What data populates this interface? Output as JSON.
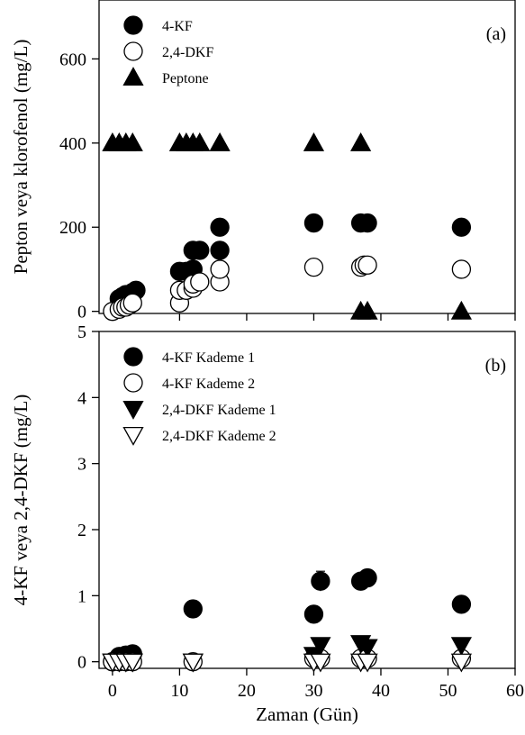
{
  "chart_data": [
    {
      "type": "scatter",
      "panel_label": "(a)",
      "ylabel": "Pepton veya klorofenol (mg/L)",
      "xlabel": "",
      "xlim": [
        -2,
        60
      ],
      "ylim": [
        -5,
        740
      ],
      "x_ticks": [
        0,
        10,
        20,
        30,
        40,
        50,
        60
      ],
      "y_ticks": [
        0,
        200,
        400,
        600
      ],
      "y_tick_labels": [
        "0",
        "200",
        "400",
        "600"
      ],
      "grid": false,
      "legend_position": "top-left",
      "series": [
        {
          "name": "4-KF",
          "marker": "circle-filled",
          "points": [
            [
              1,
              30
            ],
            [
              1.5,
              35
            ],
            [
              2,
              40
            ],
            [
              3,
              45
            ],
            [
              3.5,
              50
            ],
            [
              10,
              95
            ],
            [
              11,
              95
            ],
            [
              12,
              100
            ],
            [
              12,
              145
            ],
            [
              13,
              145
            ],
            [
              16,
              145
            ],
            [
              16,
              200
            ],
            [
              30,
              210
            ],
            [
              37,
              210
            ],
            [
              38,
              210
            ],
            [
              52,
              200
            ]
          ]
        },
        {
          "name": "2,4-DKF",
          "marker": "circle-open",
          "points": [
            [
              0,
              0
            ],
            [
              1,
              5
            ],
            [
              1.5,
              10
            ],
            [
              2,
              10
            ],
            [
              2.5,
              15
            ],
            [
              3,
              20
            ],
            [
              10,
              20
            ],
            [
              10,
              50
            ],
            [
              11,
              50
            ],
            [
              12,
              55
            ],
            [
              12,
              65
            ],
            [
              13,
              70
            ],
            [
              16,
              70
            ],
            [
              16,
              100
            ],
            [
              30,
              105
            ],
            [
              37,
              105
            ],
            [
              37.5,
              110
            ],
            [
              38,
              110
            ],
            [
              52,
              100
            ]
          ]
        },
        {
          "name": "Peptone",
          "marker": "triangle-up-filled",
          "points": [
            [
              0,
              400
            ],
            [
              1,
              400
            ],
            [
              2,
              400
            ],
            [
              3,
              400
            ],
            [
              10,
              400
            ],
            [
              11,
              400
            ],
            [
              12,
              400
            ],
            [
              13,
              400
            ],
            [
              16,
              400
            ],
            [
              30,
              400
            ],
            [
              37,
              400
            ],
            [
              37,
              0
            ],
            [
              38,
              0
            ],
            [
              52,
              0
            ]
          ]
        }
      ]
    },
    {
      "type": "scatter",
      "panel_label": "(b)",
      "ylabel": "4-KF veya 2,4-DKF (mg/L)",
      "xlabel": "Zaman (Gün)",
      "xlim": [
        -2,
        60
      ],
      "ylim": [
        -0.1,
        5
      ],
      "x_ticks": [
        0,
        10,
        20,
        30,
        40,
        50,
        60
      ],
      "y_ticks": [
        0,
        1,
        2,
        3,
        4,
        5
      ],
      "y_tick_labels": [
        "0",
        "1",
        "2",
        "3",
        "4",
        "5"
      ],
      "grid": false,
      "legend_position": "top-left",
      "series": [
        {
          "name": "4-KF Kademe 1",
          "marker": "circle-filled",
          "points": [
            [
              0,
              0
            ],
            [
              1,
              0.08
            ],
            [
              2,
              0.1
            ],
            [
              3,
              0.12
            ],
            [
              12,
              0.8
            ],
            [
              30,
              0.72
            ],
            [
              31,
              1.22
            ],
            [
              37,
              1.22
            ],
            [
              38,
              1.27
            ],
            [
              52,
              0.87
            ]
          ],
          "error_bars": [
            [
              31,
              0.15
            ]
          ]
        },
        {
          "name": "4-KF Kademe 2",
          "marker": "circle-open",
          "points": [
            [
              0,
              0
            ],
            [
              1,
              0
            ],
            [
              2,
              0
            ],
            [
              3,
              0
            ],
            [
              12,
              0
            ],
            [
              30,
              0.05
            ],
            [
              31,
              0.05
            ],
            [
              37,
              0.05
            ],
            [
              38,
              0.05
            ],
            [
              52,
              0.05
            ]
          ]
        },
        {
          "name": "2,4-DKF Kademe 1",
          "marker": "triangle-down-filled",
          "points": [
            [
              0,
              0
            ],
            [
              1,
              0
            ],
            [
              2,
              0
            ],
            [
              3,
              0
            ],
            [
              12,
              0
            ],
            [
              30,
              0.1
            ],
            [
              31,
              0.25
            ],
            [
              37,
              0.28
            ],
            [
              38,
              0.22
            ],
            [
              52,
              0.25
            ]
          ]
        },
        {
          "name": "2,4-DKF Kademe 2",
          "marker": "triangle-down-open",
          "points": [
            [
              0,
              0
            ],
            [
              1,
              0
            ],
            [
              2,
              0
            ],
            [
              3,
              0
            ],
            [
              12,
              0
            ],
            [
              30,
              0
            ],
            [
              31,
              0
            ],
            [
              37,
              0
            ],
            [
              38,
              0
            ],
            [
              52,
              0
            ]
          ]
        }
      ]
    }
  ]
}
